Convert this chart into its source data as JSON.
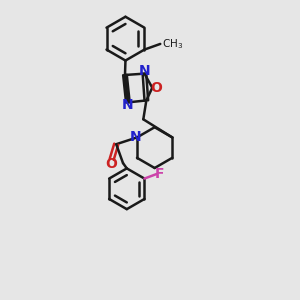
{
  "background_color": "#e6e6e6",
  "bond_color": "#1a1a1a",
  "bond_width": 1.8,
  "N_color": "#2222cc",
  "O_color": "#cc2222",
  "F_color": "#cc44aa",
  "heteroatom_fontsize": 10,
  "xlim": [
    -1.8,
    2.8
  ],
  "ylim": [
    -4.8,
    3.0
  ]
}
